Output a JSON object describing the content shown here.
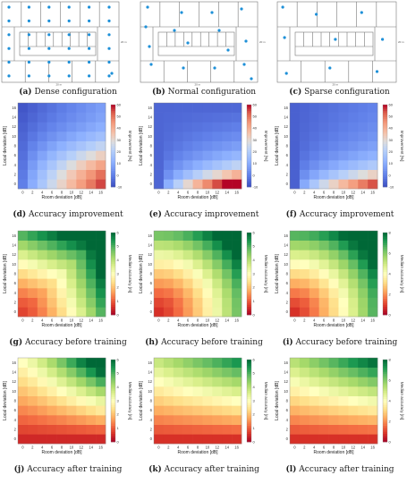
{
  "floorplans": [
    {
      "id": "a",
      "label": "(a)",
      "caption": "Dense configuration",
      "scale_text": "20 m",
      "ap_count": 37
    },
    {
      "id": "b",
      "label": "(b)",
      "caption": "Normal configuration",
      "scale_text": "20 m",
      "ap_count": 16
    },
    {
      "id": "c",
      "label": "(c)",
      "caption": "Sparse configuration",
      "scale_text": "20 m",
      "ap_count": 9
    }
  ],
  "chart_data": [
    {
      "id": "d",
      "type": "heatmap",
      "label": "(d)",
      "caption": "Accuracy improvement",
      "cmap": "coolwarm",
      "x": [
        0,
        2,
        4,
        6,
        8,
        10,
        12,
        14,
        16
      ],
      "y": [
        0,
        2,
        4,
        6,
        8,
        10,
        12,
        14,
        16
      ],
      "xlabel": "Room deviation [dB]",
      "ylabel": "Local deviation [dB]",
      "cbar_label": "Improvement [%]",
      "clim": [
        -10,
        60
      ],
      "cbar_ticks": [
        -10,
        0,
        10,
        20,
        30,
        40,
        50,
        60
      ],
      "z_pattern": "improvement_dense"
    },
    {
      "id": "e",
      "type": "heatmap",
      "label": "(e)",
      "caption": "Accuracy improvement",
      "cmap": "coolwarm",
      "x": [
        0,
        2,
        4,
        6,
        8,
        10,
        12,
        14,
        16
      ],
      "y": [
        0,
        2,
        4,
        6,
        8,
        10,
        12,
        14,
        16
      ],
      "xlabel": "Room deviation [dB]",
      "ylabel": "Local deviation [dB]",
      "cbar_label": "Improvement [%]",
      "clim": [
        -10,
        60
      ],
      "cbar_ticks": [
        -10,
        0,
        10,
        20,
        30,
        40,
        50,
        60
      ],
      "z_pattern": "improvement_normal"
    },
    {
      "id": "f",
      "type": "heatmap",
      "label": "(f)",
      "caption": "Accuracy improvement",
      "cmap": "coolwarm",
      "x": [
        0,
        2,
        4,
        6,
        8,
        10,
        12,
        14,
        16
      ],
      "y": [
        0,
        2,
        4,
        6,
        8,
        10,
        12,
        14,
        16
      ],
      "xlabel": "Room deviation [dB]",
      "ylabel": "Local deviation [dB]",
      "cbar_label": "Improvement [%]",
      "clim": [
        -10,
        60
      ],
      "cbar_ticks": [
        -10,
        0,
        10,
        20,
        30,
        40,
        50,
        60
      ],
      "z_pattern": "improvement_sparse"
    },
    {
      "id": "g",
      "type": "heatmap",
      "label": "(g)",
      "caption": "Accuracy before training",
      "cmap": "RdYlGn",
      "x": [
        0,
        2,
        4,
        6,
        8,
        10,
        12,
        14,
        16
      ],
      "y": [
        0,
        2,
        4,
        6,
        8,
        10,
        12,
        14,
        16
      ],
      "xlabel": "Room deviation [dB]",
      "ylabel": "Local deviation [dB]",
      "cbar_label": "Median accuracy [m]",
      "clim": [
        0,
        6
      ],
      "cbar_ticks": [
        0,
        1,
        2,
        3,
        4,
        5,
        6
      ],
      "z_pattern": "before_dense"
    },
    {
      "id": "h",
      "type": "heatmap",
      "label": "(h)",
      "caption": "Accuracy before training",
      "cmap": "RdYlGn",
      "x": [
        0,
        2,
        4,
        6,
        8,
        10,
        12,
        14,
        16
      ],
      "y": [
        0,
        2,
        4,
        6,
        8,
        10,
        12,
        14,
        16
      ],
      "xlabel": "Room deviation [dB]",
      "ylabel": "Local deviation [dB]",
      "cbar_label": "Median accuracy [m]",
      "clim": [
        0,
        6
      ],
      "cbar_ticks": [
        0,
        1,
        2,
        3,
        4,
        5,
        6
      ],
      "z_pattern": "before_normal"
    },
    {
      "id": "i",
      "type": "heatmap",
      "label": "(i)",
      "caption": "Accuracy before training",
      "cmap": "RdYlGn",
      "x": [
        0,
        2,
        4,
        6,
        8,
        10,
        12,
        14,
        16
      ],
      "y": [
        0,
        2,
        4,
        6,
        8,
        10,
        12,
        14,
        16
      ],
      "xlabel": "Room deviation [dB]",
      "ylabel": "Local deviation [dB]",
      "cbar_label": "Median accuracy [m]",
      "clim": [
        0,
        8
      ],
      "cbar_ticks": [
        0,
        2,
        4,
        6,
        8
      ],
      "z_pattern": "before_sparse"
    },
    {
      "id": "j",
      "type": "heatmap",
      "label": "(j)",
      "caption": "Accuracy after training",
      "cmap": "RdYlGn",
      "x": [
        0,
        2,
        4,
        6,
        8,
        10,
        12,
        14,
        16
      ],
      "y": [
        0,
        2,
        4,
        6,
        8,
        10,
        12,
        14,
        16
      ],
      "xlabel": "Room deviation [dB]",
      "ylabel": "Local deviation [dB]",
      "cbar_label": "Median accuracy [m]",
      "clim": [
        0,
        6
      ],
      "cbar_ticks": [
        0,
        1,
        2,
        3,
        4,
        5,
        6
      ],
      "z_pattern": "after_dense"
    },
    {
      "id": "k",
      "type": "heatmap",
      "label": "(k)",
      "caption": "Accuracy after training",
      "cmap": "RdYlGn",
      "x": [
        0,
        2,
        4,
        6,
        8,
        10,
        12,
        14,
        16
      ],
      "y": [
        0,
        2,
        4,
        6,
        8,
        10,
        12,
        14,
        16
      ],
      "xlabel": "Room deviation [dB]",
      "ylabel": "Local deviation [dB]",
      "cbar_label": "Median accuracy [m]",
      "clim": [
        0,
        6
      ],
      "cbar_ticks": [
        0,
        1,
        2,
        3,
        4,
        5,
        6
      ],
      "z_pattern": "after_normal"
    },
    {
      "id": "l",
      "type": "heatmap",
      "label": "(l)",
      "caption": "Accuracy after training",
      "cmap": "RdYlGn",
      "x": [
        0,
        2,
        4,
        6,
        8,
        10,
        12,
        14,
        16
      ],
      "y": [
        0,
        2,
        4,
        6,
        8,
        10,
        12,
        14,
        16
      ],
      "xlabel": "Room deviation [dB]",
      "ylabel": "Local deviation [dB]",
      "cbar_label": "Median accuracy [m]",
      "clim": [
        0,
        8
      ],
      "cbar_ticks": [
        0,
        2,
        4,
        6,
        8
      ],
      "z_pattern": "after_sparse"
    }
  ]
}
